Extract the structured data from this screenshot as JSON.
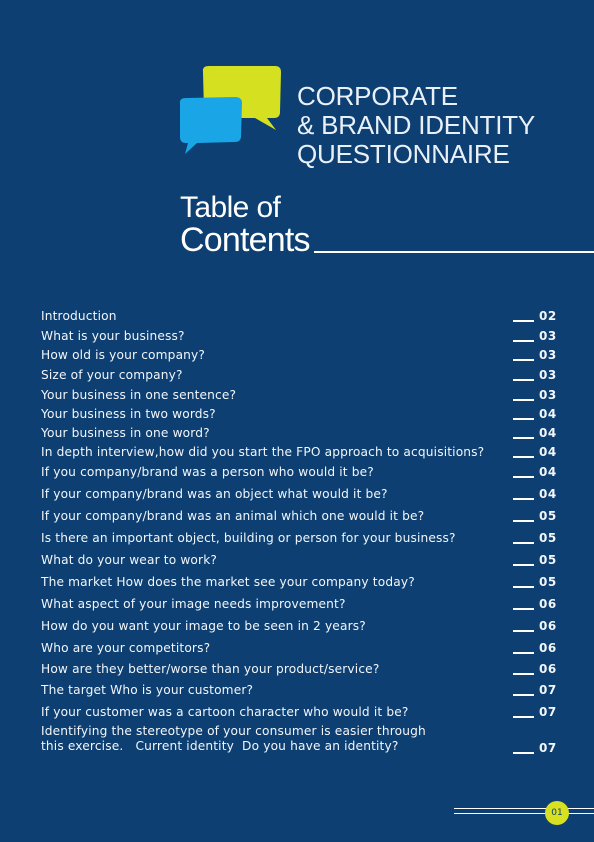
{
  "header": {
    "title_lines": [
      "CORPORATE",
      "& BRAND IDENTITY",
      "QUESTIONNAIRE"
    ],
    "logo": {
      "icon": "speech-bubbles-icon",
      "back_bubble_color": "#d5e021",
      "front_bubble_color": "#1aa6e6"
    }
  },
  "toc": {
    "heading_top": "Table of",
    "heading_bottom": "Contents",
    "entries": [
      {
        "label": "Introduction",
        "page": "02"
      },
      {
        "label": "What is your business?",
        "page": "03"
      },
      {
        "label": "How old is your company?",
        "page": "03"
      },
      {
        "label": "Size of your company?",
        "page": "03"
      },
      {
        "label": "Your business in one sentence?",
        "page": "03"
      },
      {
        "label": "Your business in two words?",
        "page": "04"
      },
      {
        "label": "Your business in one word?",
        "page": "04"
      },
      {
        "label": "In depth interview,how did you start the FPO approach to acquisitions?",
        "page": "04"
      },
      {
        "label": "If you company/brand was a person who would it be?",
        "page": "04"
      },
      {
        "label": "If your company/brand was an object  what would it be?",
        "page": "04"
      },
      {
        "label": "If your company/brand was an animal which one would it be?",
        "page": "05"
      },
      {
        "label": "Is there an important object, building or person for your business?",
        "page": "05"
      },
      {
        "label": "What do your wear to work?",
        "page": "05"
      },
      {
        "label": "The market  How does the market see your company today?",
        "page": "05"
      },
      {
        "label": "What aspect of your image needs improvement?",
        "page": "06"
      },
      {
        "label": "How do you want your image to be seen in 2 years?",
        "page": "06"
      },
      {
        "label": "Who are your competitors?",
        "page": "06"
      },
      {
        "label": "How are they better/worse than your product/service?",
        "page": "06"
      },
      {
        "label": "The target  Who is your customer?",
        "page": "07"
      },
      {
        "label": "If your customer was a cartoon character who would it be?",
        "page": "07"
      },
      {
        "label": "Identifying the stereotype of your consumer is easier through\nthis exercise.   Current identity  Do you have an identity?",
        "page": "07"
      }
    ]
  },
  "footer": {
    "page_number": "01",
    "badge_color": "#d7e021"
  },
  "colors": {
    "background": "#0d3f72",
    "text": "#ffffff"
  }
}
